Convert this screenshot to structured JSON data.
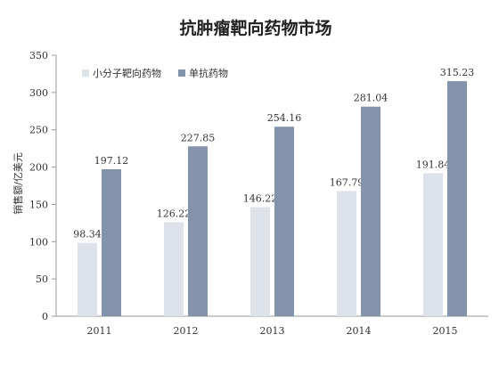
{
  "chart_data": {
    "type": "bar",
    "title": "抗肿瘤靶向药物市场",
    "xlabel": "",
    "ylabel": "销售额/亿美元",
    "categories": [
      "2011",
      "2012",
      "2013",
      "2014",
      "2015"
    ],
    "series": [
      {
        "name": "小分子靶向药物",
        "values": [
          98.34,
          126.22,
          146.22,
          167.79,
          191.84
        ],
        "color": "#dde1ea"
      },
      {
        "name": "单抗药物",
        "values": [
          197.12,
          227.85,
          254.16,
          281.04,
          315.23
        ],
        "color": "#8393ab"
      }
    ],
    "ylim": [
      0,
      350
    ],
    "yticks": [
      0,
      50,
      100,
      150,
      200,
      250,
      300,
      350
    ],
    "grid": false,
    "legend": "top-left",
    "data_labels": true
  }
}
